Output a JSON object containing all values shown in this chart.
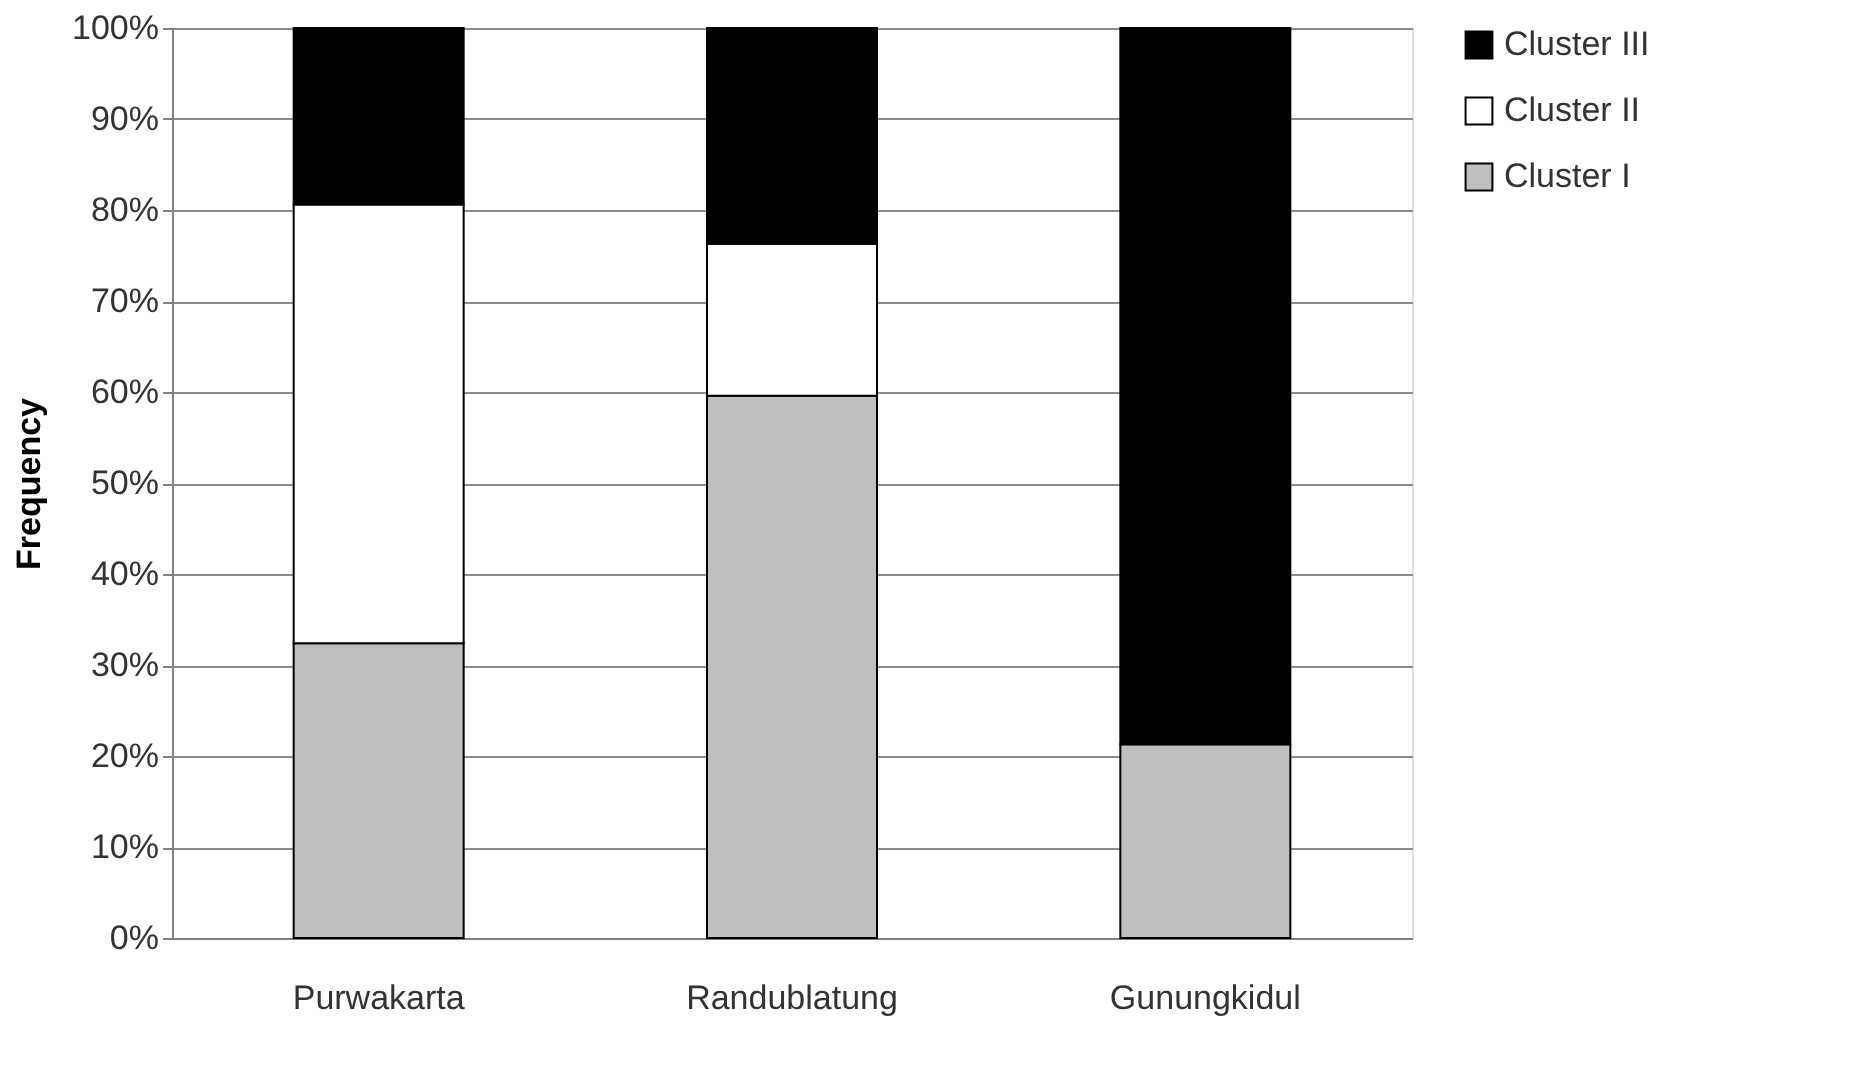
{
  "chart_data": {
    "type": "bar",
    "stacked": true,
    "ylabel": "Frequency",
    "categories": [
      "Purwakarta",
      "Randublatung",
      "Gunungkidul"
    ],
    "series": [
      {
        "name": "Cluster I",
        "color": "#bfbfbf",
        "values": [
          32.4,
          59.6,
          21.3
        ]
      },
      {
        "name": "Cluster II",
        "color": "#ffffff",
        "values": [
          48.2,
          16.7,
          0
        ]
      },
      {
        "name": "Cluster III",
        "color": "#000000",
        "values": [
          19.4,
          23.7,
          78.7
        ]
      }
    ],
    "ylim": [
      0,
      100
    ],
    "yticks": [
      {
        "value": 0,
        "label": "0%"
      },
      {
        "value": 10,
        "label": "10%"
      },
      {
        "value": 20,
        "label": "20%"
      },
      {
        "value": 30,
        "label": "30%"
      },
      {
        "value": 40,
        "label": "40%"
      },
      {
        "value": 50,
        "label": "50%"
      },
      {
        "value": 60,
        "label": "60%"
      },
      {
        "value": 70,
        "label": "70%"
      },
      {
        "value": 80,
        "label": "80%"
      },
      {
        "value": 90,
        "label": "90%"
      },
      {
        "value": 100,
        "label": "100%"
      }
    ],
    "grid": "y",
    "legend": "right"
  }
}
